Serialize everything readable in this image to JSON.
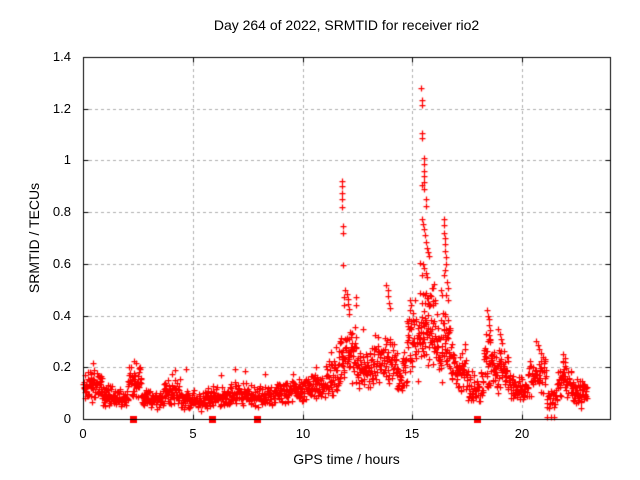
{
  "chart_data": {
    "type": "scatter",
    "title": "Day 264 of 2022, SRMTID for receiver rio2",
    "xlabel": "GPS time / hours",
    "ylabel": "SRMTID / TECUs",
    "xlim": [
      0,
      24
    ],
    "ylim": [
      0,
      1.4
    ],
    "xticks": [
      0,
      5,
      10,
      15,
      20
    ],
    "xtick_labels": [
      "0",
      "5",
      "10",
      "15",
      "20"
    ],
    "yticks": [
      0,
      0.2,
      0.4,
      0.6,
      0.8,
      1,
      1.2,
      1.4
    ],
    "ytick_labels": [
      "0",
      "0.2",
      "0.4",
      "0.6",
      "0.8",
      "1",
      "1.2",
      "1.4"
    ],
    "grid": true,
    "legend": "none",
    "marker": "plus",
    "marker_color": "#ff0000",
    "grid_color": "#b0b0b0",
    "axis_color": "#000000",
    "background": "#ffffff",
    "x_units": "hours",
    "y_units": "TECUs",
    "max_point": [
      15.4,
      1.28
    ],
    "density_bands": [
      [
        0.02,
        0.85,
        0.06,
        0.21,
        75
      ],
      [
        0.85,
        1.45,
        0.045,
        0.145,
        48
      ],
      [
        1.45,
        2.05,
        0.04,
        0.125,
        48
      ],
      [
        2.05,
        2.65,
        0.07,
        0.22,
        55
      ],
      [
        2.65,
        3.65,
        0.035,
        0.12,
        75
      ],
      [
        3.65,
        4.45,
        0.05,
        0.16,
        60
      ],
      [
        4.45,
        5.65,
        0.03,
        0.115,
        85
      ],
      [
        5.65,
        6.65,
        0.04,
        0.14,
        70
      ],
      [
        6.65,
        7.65,
        0.045,
        0.15,
        72
      ],
      [
        7.65,
        8.65,
        0.04,
        0.14,
        70
      ],
      [
        8.65,
        9.45,
        0.05,
        0.15,
        58
      ],
      [
        9.45,
        10.25,
        0.06,
        0.17,
        58
      ],
      [
        10.25,
        11.05,
        0.07,
        0.19,
        58
      ],
      [
        11.05,
        11.65,
        0.08,
        0.24,
        46
      ],
      [
        11.65,
        12.45,
        0.13,
        0.36,
        72
      ],
      [
        12.45,
        13.25,
        0.1,
        0.3,
        62
      ],
      [
        13.25,
        14.25,
        0.13,
        0.34,
        72
      ],
      [
        14.25,
        14.75,
        0.09,
        0.27,
        40
      ],
      [
        14.75,
        15.35,
        0.14,
        0.48,
        52
      ],
      [
        15.35,
        16.05,
        0.16,
        0.57,
        78
      ],
      [
        16.05,
        16.75,
        0.14,
        0.45,
        62
      ],
      [
        16.75,
        17.45,
        0.1,
        0.3,
        56
      ],
      [
        17.45,
        18.25,
        0.05,
        0.2,
        56
      ],
      [
        18.25,
        18.75,
        0.1,
        0.36,
        46
      ],
      [
        18.75,
        19.35,
        0.09,
        0.29,
        50
      ],
      [
        19.35,
        20.25,
        0.06,
        0.18,
        62
      ],
      [
        20.25,
        21.1,
        0.08,
        0.26,
        56
      ],
      [
        21.1,
        21.6,
        0.04,
        0.12,
        26
      ],
      [
        21.6,
        22.25,
        0.08,
        0.23,
        50
      ],
      [
        22.25,
        22.95,
        0.04,
        0.16,
        60
      ]
    ],
    "peak_points": [
      [
        0.45,
        0.215
      ],
      [
        2.3,
        0.225
      ],
      [
        4.05,
        0.175
      ],
      [
        4.2,
        0.19
      ],
      [
        4.7,
        0.195
      ],
      [
        6.3,
        0.17
      ],
      [
        6.9,
        0.195
      ],
      [
        7.4,
        0.185
      ],
      [
        8.3,
        0.175
      ],
      [
        9.55,
        0.175
      ],
      [
        10.6,
        0.2
      ],
      [
        11.3,
        0.26
      ],
      [
        11.5,
        0.28
      ],
      [
        11.78,
        0.92
      ],
      [
        11.8,
        0.9
      ],
      [
        11.79,
        0.875
      ],
      [
        11.81,
        0.85
      ],
      [
        11.8,
        0.82
      ],
      [
        11.82,
        0.745
      ],
      [
        11.85,
        0.72
      ],
      [
        11.83,
        0.595
      ],
      [
        11.87,
        0.47
      ],
      [
        11.9,
        0.44
      ],
      [
        11.95,
        0.5
      ],
      [
        12.02,
        0.485
      ],
      [
        12.05,
        0.465
      ],
      [
        12.08,
        0.445
      ],
      [
        12.1,
        0.425
      ],
      [
        12.12,
        0.405
      ],
      [
        12.42,
        0.47
      ],
      [
        12.45,
        0.44
      ],
      [
        12.75,
        0.35
      ],
      [
        13.82,
        0.52
      ],
      [
        13.87,
        0.5
      ],
      [
        13.9,
        0.475
      ],
      [
        13.93,
        0.45
      ],
      [
        13.97,
        0.43
      ],
      [
        14.88,
        0.46
      ],
      [
        14.9,
        0.42
      ],
      [
        14.92,
        0.44
      ],
      [
        15.4,
        1.28
      ],
      [
        15.42,
        1.235
      ],
      [
        15.43,
        1.215
      ],
      [
        15.45,
        1.105
      ],
      [
        15.46,
        1.085
      ],
      [
        15.52,
        1.01
      ],
      [
        15.53,
        0.985
      ],
      [
        15.52,
        0.96
      ],
      [
        15.54,
        0.94
      ],
      [
        15.53,
        0.915
      ],
      [
        15.55,
        0.89
      ],
      [
        15.44,
        0.905
      ],
      [
        15.6,
        0.85
      ],
      [
        15.64,
        0.825
      ],
      [
        15.46,
        0.775
      ],
      [
        15.5,
        0.755
      ],
      [
        15.54,
        0.735
      ],
      [
        15.58,
        0.71
      ],
      [
        15.62,
        0.685
      ],
      [
        15.66,
        0.66
      ],
      [
        15.7,
        0.645
      ],
      [
        15.74,
        0.63
      ],
      [
        15.36,
        0.605
      ],
      [
        15.48,
        0.6
      ],
      [
        15.55,
        0.585
      ],
      [
        15.62,
        0.565
      ],
      [
        15.68,
        0.55
      ],
      [
        16.3,
        0.5
      ],
      [
        16.35,
        0.48
      ],
      [
        16.42,
        0.775
      ],
      [
        16.45,
        0.75
      ],
      [
        16.44,
        0.72
      ],
      [
        16.47,
        0.7
      ],
      [
        16.5,
        0.675
      ],
      [
        16.48,
        0.65
      ],
      [
        16.52,
        0.625
      ],
      [
        16.55,
        0.6
      ],
      [
        16.5,
        0.575
      ],
      [
        16.45,
        0.555
      ],
      [
        16.58,
        0.53
      ],
      [
        16.6,
        0.505
      ],
      [
        16.55,
        0.48
      ],
      [
        16.62,
        0.46
      ],
      [
        18.42,
        0.42
      ],
      [
        18.45,
        0.4
      ],
      [
        18.47,
        0.385
      ],
      [
        18.5,
        0.365
      ],
      [
        18.53,
        0.345
      ],
      [
        18.48,
        0.325
      ],
      [
        18.55,
        0.31
      ],
      [
        18.92,
        0.35
      ],
      [
        18.97,
        0.33
      ],
      [
        19.02,
        0.31
      ],
      [
        19.07,
        0.295
      ],
      [
        20.65,
        0.3
      ],
      [
        20.72,
        0.285
      ],
      [
        20.78,
        0.27
      ],
      [
        20.85,
        0.255
      ],
      [
        21.88,
        0.25
      ],
      [
        21.93,
        0.235
      ],
      [
        21.97,
        0.22
      ]
    ],
    "zero_squares": [
      2.27,
      5.86,
      7.92,
      17.95
    ],
    "near_zero_points": [
      [
        21.15,
        0.006
      ],
      [
        21.3,
        0.009
      ],
      [
        21.45,
        0.006
      ]
    ]
  }
}
